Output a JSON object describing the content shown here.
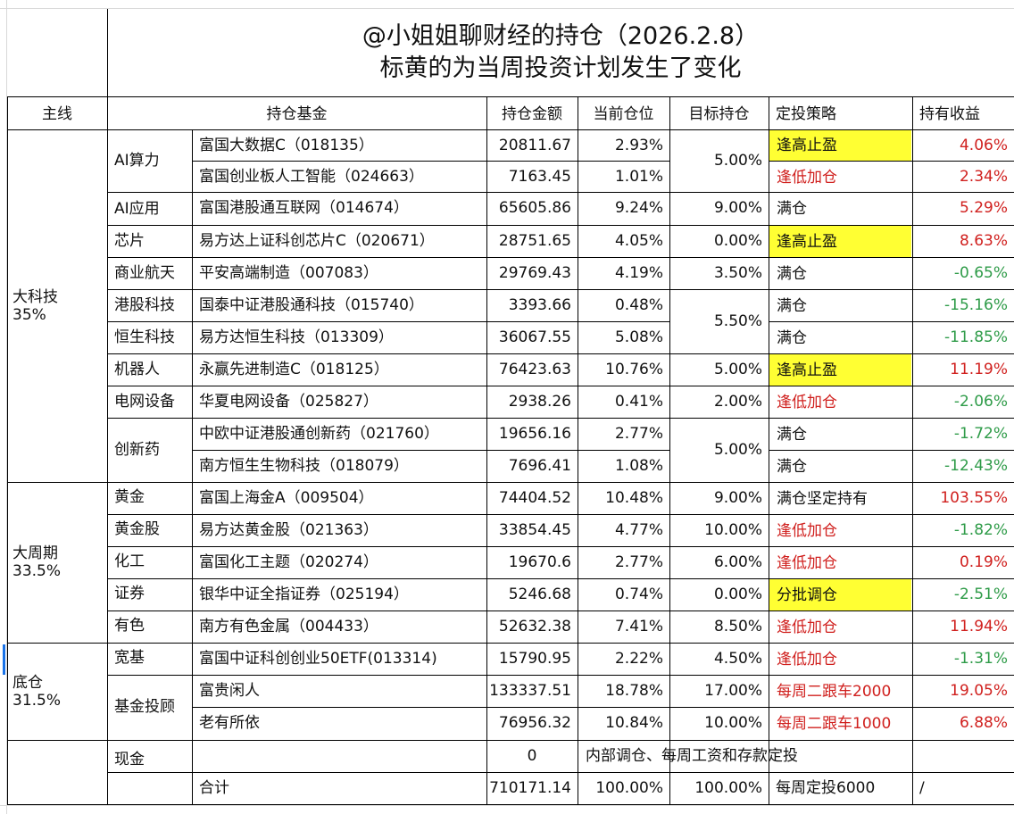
{
  "title": {
    "line1": "@小姐姐聊财经的持仓（2026.2.8）",
    "line2": "标黄的为当周投资计划发生了变化"
  },
  "headers": {
    "main_line": "主线",
    "fund": "持仓基金",
    "amount": "持仓金额",
    "current": "当前仓位",
    "target": "目标持仓",
    "strategy": "定投策略",
    "profit": "持有收益"
  },
  "groups": {
    "tech": {
      "name": "大科技",
      "pct": "35%"
    },
    "cycle": {
      "name": "大周期",
      "pct": "33.5%"
    },
    "base": {
      "name": "底仓",
      "pct": "31.5%"
    }
  },
  "sectors": {
    "ai_compute": "AI算力",
    "ai_app": "AI应用",
    "chip": "芯片",
    "aerospace": "商业航天",
    "hk_tech": "港股科技",
    "hs_tech": "恒生科技",
    "robot": "机器人",
    "grid": "电网设备",
    "pharma": "创新药",
    "gold": "黄金",
    "gold_stock": "黄金股",
    "chem": "化工",
    "securities": "证券",
    "metals": "有色",
    "broad": "宽基",
    "advisor": "基金投顾",
    "cash": "现金"
  },
  "rows": [
    {
      "fund": "富国大数据C（018135）",
      "amount": "20811.67",
      "current": "2.93%",
      "strategy": "逢高止盈",
      "profit": "4.06%"
    },
    {
      "fund": "富国创业板人工智能（024663）",
      "amount": "7163.45",
      "current": "1.01%",
      "strategy": "逢低加仓",
      "profit": "2.34%"
    },
    {
      "fund": "富国港股通互联网（014674）",
      "amount": "65605.86",
      "current": "9.24%",
      "target": "9.00%",
      "strategy": "满仓",
      "profit": "5.29%"
    },
    {
      "fund": "易方达上证科创芯片C（020671）",
      "amount": "28751.65",
      "current": "4.05%",
      "target": "0.00%",
      "strategy": "逢高止盈",
      "profit": "8.63%"
    },
    {
      "fund": "平安高端制造（007083）",
      "amount": "29769.43",
      "current": "4.19%",
      "target": "3.50%",
      "strategy": "满仓",
      "profit": "-0.65%"
    },
    {
      "fund": "国泰中证港股通科技（015740）",
      "amount": "3393.66",
      "current": "0.48%",
      "strategy": "满仓",
      "profit": "-15.16%"
    },
    {
      "fund": "易方达恒生科技（013309）",
      "amount": "36067.55",
      "current": "5.08%",
      "strategy": "满仓",
      "profit": "-11.85%"
    },
    {
      "fund": "永赢先进制造C（018125）",
      "amount": "76423.63",
      "current": "10.76%",
      "target": "5.00%",
      "strategy": "逢高止盈",
      "profit": "11.19%"
    },
    {
      "fund": "华夏电网设备（025827）",
      "amount": "2938.26",
      "current": "0.41%",
      "target": "2.00%",
      "strategy": "逢低加仓",
      "profit": "-2.06%"
    },
    {
      "fund": "中欧中证港股通创新药（021760）",
      "amount": "19656.16",
      "current": "2.77%",
      "strategy": "满仓",
      "profit": "-1.72%"
    },
    {
      "fund": "南方恒生生物科技（018079）",
      "amount": "7696.41",
      "current": "1.08%",
      "strategy": "满仓",
      "profit": "-12.43%"
    },
    {
      "fund": "富国上海金A（009504）",
      "amount": "74404.52",
      "current": "10.48%",
      "target": "9.00%",
      "strategy": "满仓坚定持有",
      "profit": "103.55%"
    },
    {
      "fund": "易方达黄金股（021363）",
      "amount": "33854.45",
      "current": "4.77%",
      "target": "10.00%",
      "strategy": "逢低加仓",
      "profit": "-1.82%"
    },
    {
      "fund": "富国化工主题（020274）",
      "amount": "19670.6",
      "current": "2.77%",
      "target": "6.00%",
      "strategy": "逢低加仓",
      "profit": "0.19%"
    },
    {
      "fund": "银华中证全指证券（025194）",
      "amount": "5246.68",
      "current": "0.74%",
      "target": "0.00%",
      "strategy": "分批调仓",
      "profit": "-2.51%"
    },
    {
      "fund": "南方有色金属（004433）",
      "amount": "52632.38",
      "current": "7.41%",
      "target": "8.50%",
      "strategy": "逢低加仓",
      "profit": "11.94%"
    },
    {
      "fund": "富国中证科创创业50ETF(013314)",
      "amount": "15790.95",
      "current": "2.22%",
      "target": "4.50%",
      "strategy": "逢低加仓",
      "profit": "-1.31%"
    },
    {
      "fund": "富贵闲人",
      "amount": "133337.51",
      "current": "18.78%",
      "target": "17.00%",
      "strategy": "每周二跟车2000",
      "profit": "19.05%"
    },
    {
      "fund": "老有所依",
      "amount": "76956.32",
      "current": "10.84%",
      "target": "10.00%",
      "strategy": "每周二跟车1000",
      "profit": "6.88%"
    }
  ],
  "merged_targets": {
    "ai_compute": "5.00%",
    "hk": "5.50%",
    "pharma": "5.00%"
  },
  "cash_row": {
    "amount": "0",
    "note": "内部调仓、每周工资和存款定投"
  },
  "total_row": {
    "label": "合计",
    "amount": "710171.14",
    "current": "100.00%",
    "target": "100.00%",
    "strategy": "每周定投6000",
    "profit": "/"
  },
  "colors": {
    "red": "#d0201e",
    "green": "#2e9b48",
    "highlight": "#ffff33"
  }
}
